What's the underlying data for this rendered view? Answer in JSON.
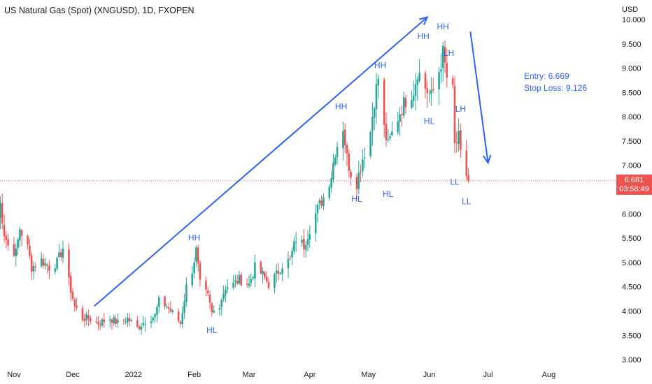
{
  "header": {
    "title": "US Natural Gas (Spot) (XNGUSD), 1D, FXOPEN",
    "currency": "USD"
  },
  "current_price": {
    "price": "6.681",
    "countdown": "03:58:49",
    "value": 6.681
  },
  "notes": {
    "entry": "Entry: 6.669",
    "stop_loss": "Stop Loss: 9.126"
  },
  "colors": {
    "up": "#26a69a",
    "down": "#ef5350",
    "annotation": "#2962ff",
    "price_line": "#ef5350"
  },
  "chart_data": {
    "type": "candlestick",
    "title": "US Natural Gas (Spot) (XNGUSD), 1D, FXOPEN",
    "ylabel": "USD",
    "ylim": [
      2.9,
      10.0
    ],
    "y_ticks": [
      "3.000",
      "3.500",
      "4.000",
      "4.500",
      "5.000",
      "5.500",
      "6.000",
      "6.500",
      "7.000",
      "7.500",
      "8.000",
      "8.500",
      "9.000",
      "9.500",
      "10.000"
    ],
    "x_ticks": [
      {
        "label": "Nov",
        "date": "2021-11-01"
      },
      {
        "label": "Dec",
        "date": "2021-12-01"
      },
      {
        "label": "2022",
        "date": "2022-01-01"
      },
      {
        "label": "Feb",
        "date": "2022-02-01"
      },
      {
        "label": "Mar",
        "date": "2022-03-01"
      },
      {
        "label": "Apr",
        "date": "2022-04-01"
      },
      {
        "label": "May",
        "date": "2022-05-01"
      },
      {
        "label": "Jun",
        "date": "2022-06-01"
      },
      {
        "label": "Jul",
        "date": "2022-07-01"
      },
      {
        "label": "Aug",
        "date": "2022-08-01"
      }
    ],
    "anchors": [
      [
        "2021-10-22",
        5.9
      ],
      [
        "2021-10-25",
        6.2
      ],
      [
        "2021-10-27",
        5.6
      ],
      [
        "2021-10-29",
        5.35
      ],
      [
        "2021-11-02",
        5.2
      ],
      [
        "2021-11-04",
        5.7
      ],
      [
        "2021-11-08",
        5.3
      ],
      [
        "2021-11-10",
        4.9
      ],
      [
        "2021-11-15",
        5.05
      ],
      [
        "2021-11-19",
        4.9
      ],
      [
        "2021-11-23",
        5.0
      ],
      [
        "2021-11-26",
        5.3
      ],
      [
        "2021-11-29",
        4.6
      ],
      [
        "2021-12-02",
        4.1
      ],
      [
        "2021-12-06",
        3.85
      ],
      [
        "2021-12-09",
        3.85
      ],
      [
        "2021-12-14",
        3.75
      ],
      [
        "2021-12-20",
        3.85
      ],
      [
        "2021-12-24",
        3.75
      ],
      [
        "2021-12-29",
        3.85
      ],
      [
        "2022-01-03",
        3.65
      ],
      [
        "2022-01-07",
        3.8
      ],
      [
        "2022-01-12",
        3.9
      ],
      [
        "2022-01-14",
        4.2
      ],
      [
        "2022-01-18",
        4.1
      ],
      [
        "2022-01-21",
        3.95
      ],
      [
        "2022-01-25",
        3.75
      ],
      [
        "2022-01-28",
        4.5
      ],
      [
        "2022-01-31",
        4.85
      ],
      [
        "2022-02-02",
        5.25
      ],
      [
        "2022-02-04",
        4.55
      ],
      [
        "2022-02-08",
        4.3
      ],
      [
        "2022-02-10",
        3.95
      ],
      [
        "2022-02-14",
        4.15
      ],
      [
        "2022-02-17",
        4.5
      ],
      [
        "2022-02-21",
        4.55
      ],
      [
        "2022-02-24",
        4.65
      ],
      [
        "2022-03-01",
        4.55
      ],
      [
        "2022-03-04",
        4.9
      ],
      [
        "2022-03-08",
        4.75
      ],
      [
        "2022-03-11",
        4.55
      ],
      [
        "2022-03-15",
        4.75
      ],
      [
        "2022-03-18",
        4.95
      ],
      [
        "2022-03-22",
        5.05
      ],
      [
        "2022-03-25",
        5.5
      ],
      [
        "2022-03-29",
        5.35
      ],
      [
        "2022-04-01",
        5.7
      ],
      [
        "2022-04-05",
        6.1
      ],
      [
        "2022-04-08",
        6.35
      ],
      [
        "2022-04-12",
        6.8
      ],
      [
        "2022-04-14",
        7.3
      ],
      [
        "2022-04-18",
        7.8
      ],
      [
        "2022-04-20",
        7.15
      ],
      [
        "2022-04-22",
        6.85
      ],
      [
        "2022-04-25",
        6.65
      ],
      [
        "2022-04-28",
        7.15
      ],
      [
        "2022-05-02",
        7.7
      ],
      [
        "2022-05-04",
        8.35
      ],
      [
        "2022-05-06",
        8.8
      ],
      [
        "2022-05-09",
        7.75
      ],
      [
        "2022-05-11",
        7.4
      ],
      [
        "2022-05-13",
        7.65
      ],
      [
        "2022-05-17",
        8.1
      ],
      [
        "2022-05-20",
        8.35
      ],
      [
        "2022-05-24",
        8.55
      ],
      [
        "2022-05-26",
        8.95
      ],
      [
        "2022-05-30",
        8.6
      ],
      [
        "2022-06-02",
        8.4
      ],
      [
        "2022-06-06",
        8.95
      ],
      [
        "2022-06-08",
        9.3
      ],
      [
        "2022-06-10",
        8.8
      ],
      [
        "2022-06-13",
        8.5
      ],
      [
        "2022-06-14",
        7.4
      ],
      [
        "2022-06-16",
        7.55
      ],
      [
        "2022-06-17",
        7.2
      ],
      [
        "2022-06-21",
        6.68
      ]
    ],
    "annotations": [
      {
        "label": "HH",
        "date": "2022-02-01",
        "price": 5.45
      },
      {
        "label": "HL",
        "date": "2022-02-10",
        "price": 3.55
      },
      {
        "label": "HH",
        "date": "2022-04-17",
        "price": 8.15
      },
      {
        "label": "HL",
        "date": "2022-04-25",
        "price": 6.25
      },
      {
        "label": "HH",
        "date": "2022-05-07",
        "price": 9.0
      },
      {
        "label": "HL",
        "date": "2022-05-11",
        "price": 6.35
      },
      {
        "label": "HH",
        "date": "2022-05-29",
        "price": 9.6
      },
      {
        "label": "HL",
        "date": "2022-06-01",
        "price": 7.85
      },
      {
        "label": "HH",
        "date": "2022-06-08",
        "price": 9.8
      },
      {
        "label": "LH",
        "date": "2022-06-11",
        "price": 9.25
      },
      {
        "label": "LH",
        "date": "2022-06-17",
        "price": 8.1
      },
      {
        "label": "LL",
        "date": "2022-06-14",
        "price": 6.6
      },
      {
        "label": "LL",
        "date": "2022-06-20",
        "price": 6.2
      }
    ],
    "trend_arrows": [
      {
        "from": {
          "date": "2021-12-12",
          "price": 4.1
        },
        "to": {
          "date": "2022-05-31",
          "price": 10.05
        }
      },
      {
        "from": {
          "date": "2022-06-22",
          "price": 9.75
        },
        "to": {
          "date": "2022-07-01",
          "price": 7.05
        }
      }
    ]
  }
}
